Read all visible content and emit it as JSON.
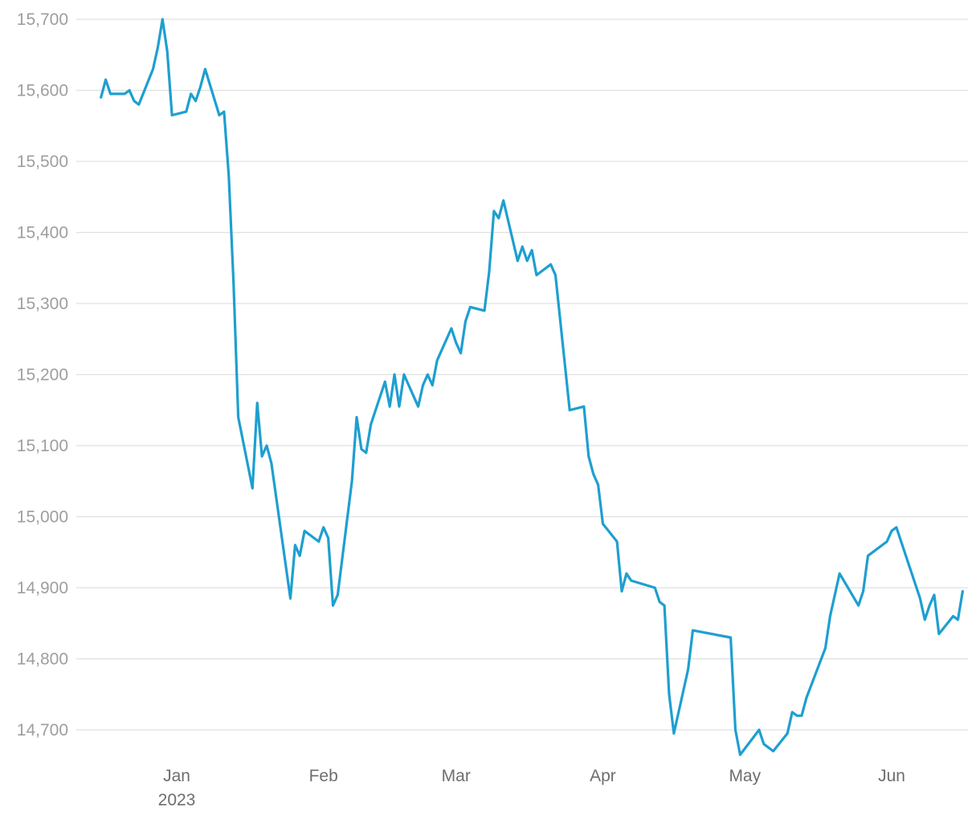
{
  "chart_data": {
    "type": "line",
    "title": "",
    "xlabel": "",
    "ylabel": "",
    "ylim": [
      14650,
      15725
    ],
    "grid": true,
    "y_ticks": [
      14700,
      14800,
      14900,
      15000,
      15100,
      15200,
      15300,
      15400,
      15500,
      15600,
      15700
    ],
    "y_tick_labels": [
      "14,700",
      "14,800",
      "14,900",
      "15,000",
      "15,100",
      "15,200",
      "15,300",
      "15,400",
      "15,500",
      "15,600",
      "15,700"
    ],
    "x_ticks": [
      {
        "date": "2023-01-01",
        "label": "Jan",
        "sublabel": "2023"
      },
      {
        "date": "2023-02-01",
        "label": "Feb",
        "sublabel": ""
      },
      {
        "date": "2023-03-01",
        "label": "Mar",
        "sublabel": ""
      },
      {
        "date": "2023-04-01",
        "label": "Apr",
        "sublabel": ""
      },
      {
        "date": "2023-05-01",
        "label": "May",
        "sublabel": ""
      },
      {
        "date": "2023-06-01",
        "label": "Jun",
        "sublabel": ""
      }
    ],
    "xlim": [
      "2022-12-14",
      "2023-06-14"
    ],
    "series": [
      {
        "color": "#1e9fd0",
        "points": [
          [
            "2022-12-16",
            15590
          ],
          [
            "2022-12-17",
            15615
          ],
          [
            "2022-12-18",
            15595
          ],
          [
            "2022-12-20",
            15595
          ],
          [
            "2022-12-21",
            15595
          ],
          [
            "2022-12-22",
            15600
          ],
          [
            "2022-12-23",
            15585
          ],
          [
            "2022-12-24",
            15580
          ],
          [
            "2022-12-27",
            15630
          ],
          [
            "2022-12-28",
            15660
          ],
          [
            "2022-12-29",
            15700
          ],
          [
            "2022-12-30",
            15655
          ],
          [
            "2022-12-31",
            15565
          ],
          [
            "2023-01-03",
            15570
          ],
          [
            "2023-01-04",
            15595
          ],
          [
            "2023-01-05",
            15585
          ],
          [
            "2023-01-06",
            15605
          ],
          [
            "2023-01-07",
            15630
          ],
          [
            "2023-01-10",
            15565
          ],
          [
            "2023-01-11",
            15570
          ],
          [
            "2023-01-12",
            15480
          ],
          [
            "2023-01-13",
            15330
          ],
          [
            "2023-01-14",
            15140
          ],
          [
            "2023-01-17",
            15040
          ],
          [
            "2023-01-18",
            15160
          ],
          [
            "2023-01-19",
            15085
          ],
          [
            "2023-01-20",
            15100
          ],
          [
            "2023-01-21",
            15075
          ],
          [
            "2023-01-25",
            14885
          ],
          [
            "2023-01-26",
            14960
          ],
          [
            "2023-01-27",
            14945
          ],
          [
            "2023-01-28",
            14980
          ],
          [
            "2023-01-31",
            14965
          ],
          [
            "2023-02-01",
            14985
          ],
          [
            "2023-02-02",
            14970
          ],
          [
            "2023-02-03",
            14875
          ],
          [
            "2023-02-04",
            14890
          ],
          [
            "2023-02-07",
            15050
          ],
          [
            "2023-02-08",
            15140
          ],
          [
            "2023-02-09",
            15095
          ],
          [
            "2023-02-10",
            15090
          ],
          [
            "2023-02-11",
            15130
          ],
          [
            "2023-02-14",
            15190
          ],
          [
            "2023-02-15",
            15155
          ],
          [
            "2023-02-16",
            15200
          ],
          [
            "2023-02-17",
            15155
          ],
          [
            "2023-02-18",
            15200
          ],
          [
            "2023-02-21",
            15155
          ],
          [
            "2023-02-22",
            15185
          ],
          [
            "2023-02-23",
            15200
          ],
          [
            "2023-02-24",
            15185
          ],
          [
            "2023-02-25",
            15220
          ],
          [
            "2023-02-28",
            15265
          ],
          [
            "2023-03-01",
            15245
          ],
          [
            "2023-03-02",
            15230
          ],
          [
            "2023-03-03",
            15275
          ],
          [
            "2023-03-04",
            15295
          ],
          [
            "2023-03-07",
            15290
          ],
          [
            "2023-03-08",
            15345
          ],
          [
            "2023-03-09",
            15430
          ],
          [
            "2023-03-10",
            15420
          ],
          [
            "2023-03-11",
            15445
          ],
          [
            "2023-03-14",
            15360
          ],
          [
            "2023-03-15",
            15380
          ],
          [
            "2023-03-16",
            15360
          ],
          [
            "2023-03-17",
            15375
          ],
          [
            "2023-03-18",
            15340
          ],
          [
            "2023-03-21",
            15355
          ],
          [
            "2023-03-22",
            15340
          ],
          [
            "2023-03-25",
            15150
          ],
          [
            "2023-03-28",
            15155
          ],
          [
            "2023-03-29",
            15085
          ],
          [
            "2023-03-30",
            15060
          ],
          [
            "2023-03-31",
            15045
          ],
          [
            "2023-04-01",
            14990
          ],
          [
            "2023-04-04",
            14965
          ],
          [
            "2023-04-05",
            14895
          ],
          [
            "2023-04-06",
            14920
          ],
          [
            "2023-04-07",
            14910
          ],
          [
            "2023-04-12",
            14900
          ],
          [
            "2023-04-13",
            14880
          ],
          [
            "2023-04-14",
            14875
          ],
          [
            "2023-04-15",
            14750
          ],
          [
            "2023-04-16",
            14695
          ],
          [
            "2023-04-19",
            14785
          ],
          [
            "2023-04-20",
            14840
          ],
          [
            "2023-04-28",
            14830
          ],
          [
            "2023-04-29",
            14700
          ],
          [
            "2023-04-30",
            14665
          ],
          [
            "2023-05-04",
            14700
          ],
          [
            "2023-05-05",
            14680
          ],
          [
            "2023-05-07",
            14670
          ],
          [
            "2023-05-10",
            14695
          ],
          [
            "2023-05-11",
            14725
          ],
          [
            "2023-05-12",
            14720
          ],
          [
            "2023-05-13",
            14720
          ],
          [
            "2023-05-14",
            14745
          ],
          [
            "2023-05-18",
            14815
          ],
          [
            "2023-05-19",
            14860
          ],
          [
            "2023-05-21",
            14920
          ],
          [
            "2023-05-25",
            14875
          ],
          [
            "2023-05-26",
            14895
          ],
          [
            "2023-05-27",
            14945
          ],
          [
            "2023-05-31",
            14965
          ],
          [
            "2023-06-01",
            14980
          ],
          [
            "2023-06-02",
            14985
          ],
          [
            "2023-06-07",
            14885
          ],
          [
            "2023-06-08",
            14855
          ],
          [
            "2023-06-09",
            14875
          ],
          [
            "2023-06-10",
            14890
          ],
          [
            "2023-06-11",
            14835
          ],
          [
            "2023-06-14",
            14860
          ],
          [
            "2023-06-15",
            14855
          ],
          [
            "2023-06-16",
            14895
          ]
        ]
      }
    ]
  }
}
